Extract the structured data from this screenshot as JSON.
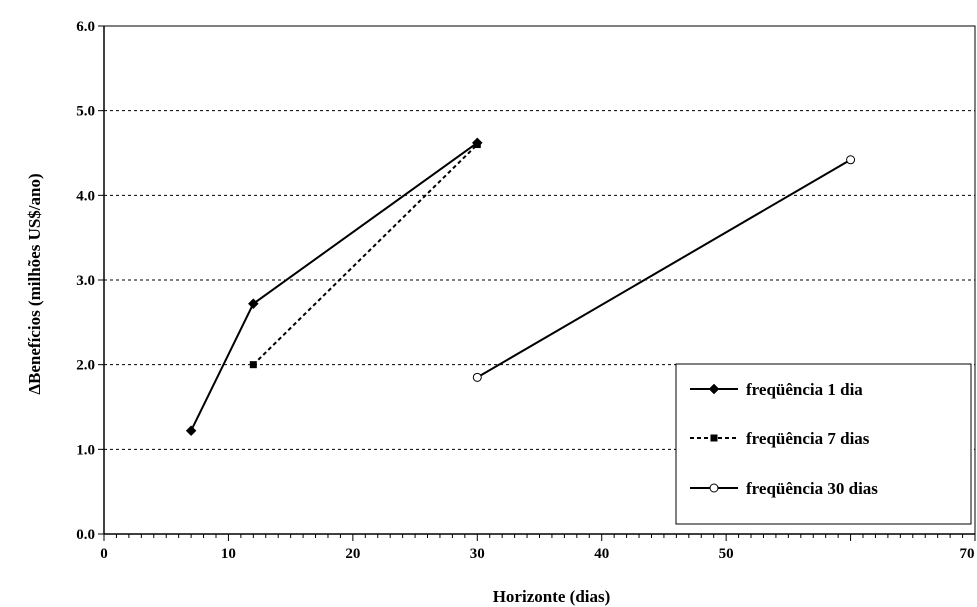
{
  "chart_data": {
    "type": "line",
    "xlabel": "Horizonte (dias)",
    "ylabel": "ΔBenefícios (milhões US$/ano)",
    "xlim": [
      0,
      70
    ],
    "ylim": [
      0,
      6
    ],
    "x_ticks": [
      0,
      10,
      20,
      30,
      40,
      50,
      70
    ],
    "x_tick_labels": [
      "0",
      "10",
      "20",
      "30",
      "40",
      "50",
      "70"
    ],
    "y_ticks": [
      0,
      1,
      2,
      3,
      4,
      5,
      6
    ],
    "y_tick_labels": [
      "0.0",
      "1.0",
      "2.0",
      "3.0",
      "4.0",
      "5.0",
      "6.0"
    ],
    "grid": "horizontal dashed",
    "legend_position": "bottom-right",
    "series": [
      {
        "name": "freqüência 1 dia",
        "x": [
          7,
          12,
          30
        ],
        "y": [
          1.22,
          2.72,
          4.62
        ],
        "line": "solid",
        "marker": "diamond-filled",
        "color": "#000000"
      },
      {
        "name": "freqüência 7 dias",
        "x": [
          12,
          30
        ],
        "y": [
          2.0,
          4.6
        ],
        "line": "dashed",
        "marker": "square-filled",
        "color": "#000000"
      },
      {
        "name": "freqüência 30 dias",
        "x": [
          30,
          60
        ],
        "y": [
          1.85,
          4.42
        ],
        "line": "solid",
        "marker": "circle-open",
        "color": "#000000"
      }
    ]
  }
}
